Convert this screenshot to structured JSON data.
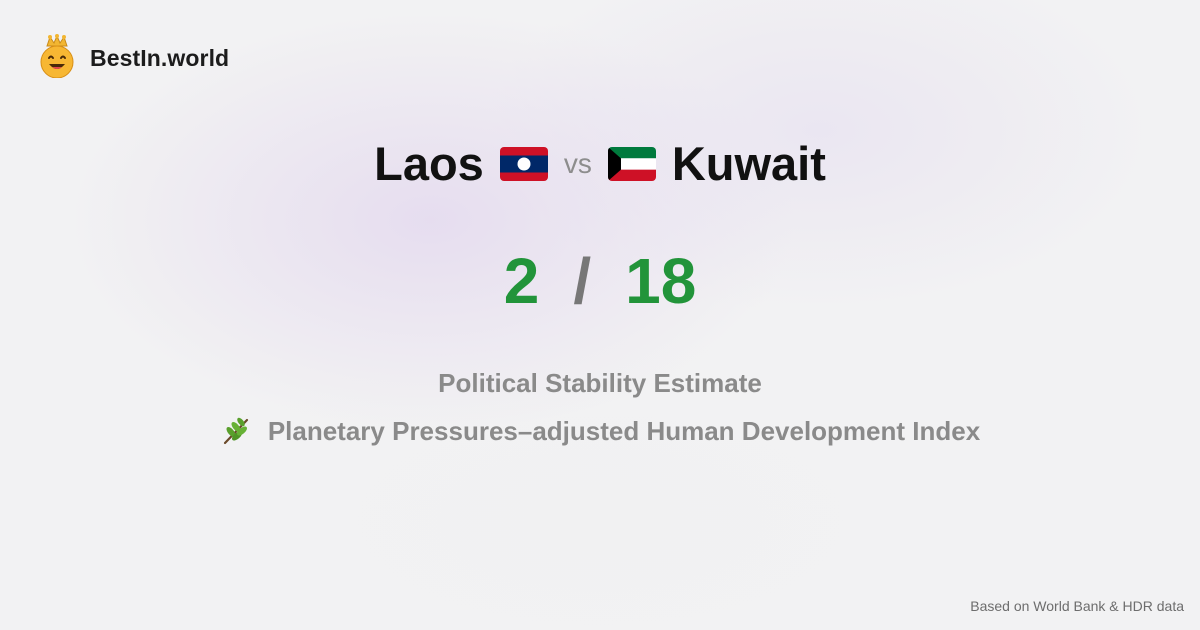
{
  "brand": {
    "name": "BestIn.world",
    "logo_icon": "crowned-smiley-icon"
  },
  "comparison": {
    "left_country": "Laos",
    "left_flag_icon": "laos-flag-icon",
    "vs_text": "vs",
    "right_country": "Kuwait",
    "right_flag_icon": "kuwait-flag-icon"
  },
  "scores": {
    "left": "2",
    "separator": "/",
    "right": "18"
  },
  "metrics": [
    {
      "label": "Political Stability Estimate"
    },
    {
      "label": "Planetary Pressures–adjusted Human Development Index",
      "icon": "herb-icon"
    }
  ],
  "footer": {
    "source": "Based on World Bank & HDR data"
  },
  "colors": {
    "score": "#22943a",
    "muted_text": "#8a8a8a",
    "heading_text": "#111111"
  }
}
